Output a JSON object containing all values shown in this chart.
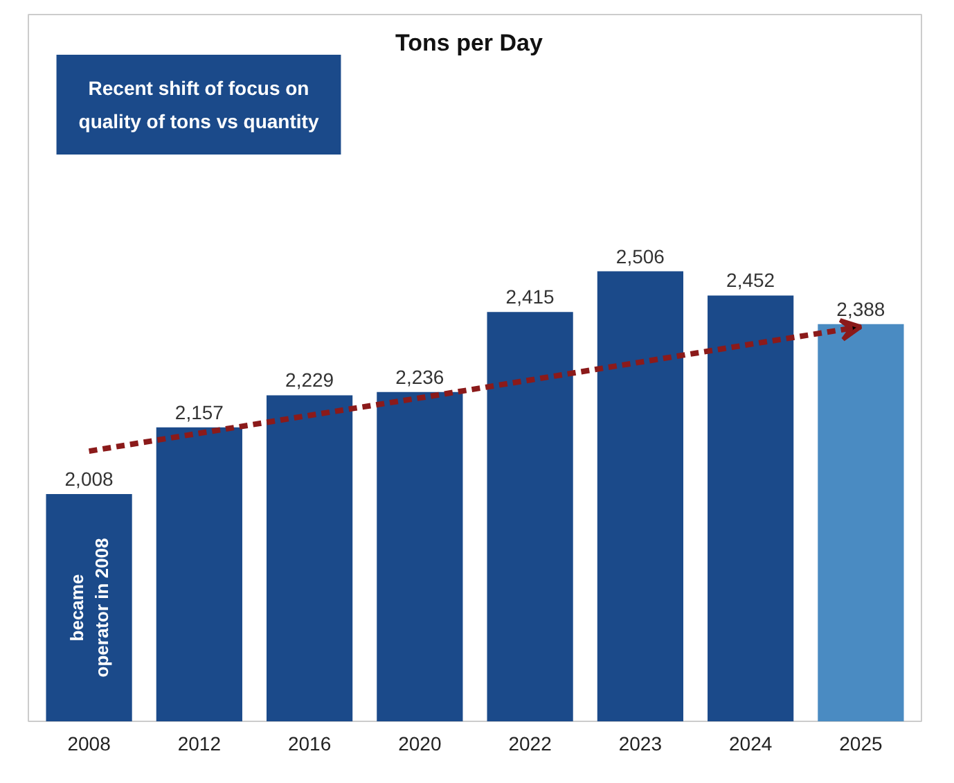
{
  "chart_data": {
    "type": "bar",
    "title": "Tons per Day",
    "categories": [
      "2008",
      "2012",
      "2016",
      "2020",
      "2022",
      "2023",
      "2024",
      "2025"
    ],
    "series": [
      {
        "values": [
          2008,
          2157,
          2229,
          2236,
          2415,
          2506,
          2452,
          2388
        ],
        "colors": [
          "#1b4a8a",
          "#1b4a8a",
          "#1b4a8a",
          "#1b4a8a",
          "#1b4a8a",
          "#1b4a8a",
          "#1b4a8a",
          "#4a8bc2"
        ],
        "value_labels": [
          "2,008",
          "2,157",
          "2,229",
          "2,236",
          "2,415",
          "2,506",
          "2,452",
          "2,388"
        ]
      },
      {
        "type": "line",
        "values": [
          2104,
          2144,
          2184,
          2223,
          2263,
          2303,
          2343,
          2382
        ],
        "color": "#8b1a1a",
        "line_style": "dashed"
      }
    ],
    "ylim": [
      1500,
      3080
    ],
    "tick_labels": "x",
    "grid": false,
    "annotations": [
      "Recent shift of focus on quality of tons vs quantity",
      "became operator in 2008"
    ]
  }
}
